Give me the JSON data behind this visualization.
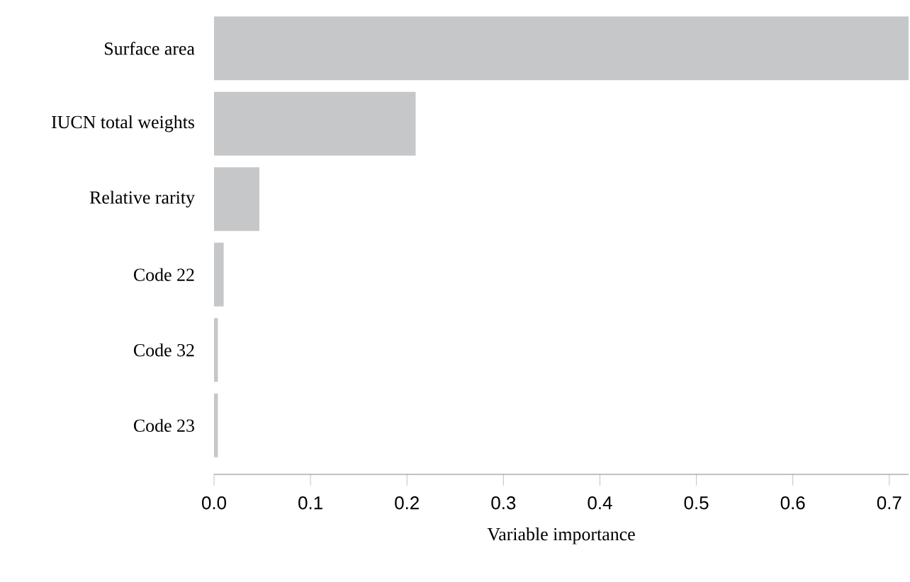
{
  "chart_data": {
    "type": "bar",
    "orientation": "horizontal",
    "categories": [
      "Surface area",
      "IUCN total weights",
      "Relative rarity",
      "Code 22",
      "Code 32",
      "Code 23"
    ],
    "values": [
      0.72,
      0.209,
      0.047,
      0.01,
      0.004,
      0.004
    ],
    "color": "#c6c7c9",
    "xlim": [
      0,
      0.72
    ],
    "xticks": [
      {
        "value": 0,
        "label": "0.0"
      },
      0.1,
      0.2,
      0.3,
      0.4,
      0.5,
      0.6,
      0.7
    ],
    "xlabel": "Variable importance"
  }
}
